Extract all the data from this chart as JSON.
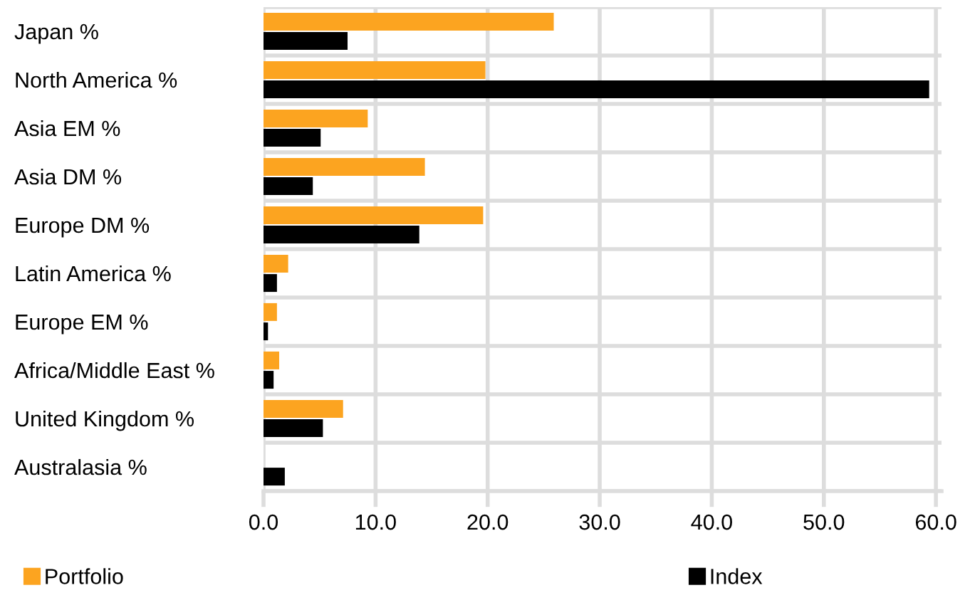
{
  "chart_data": {
    "type": "bar",
    "orientation": "horizontal",
    "categories": [
      "Japan %",
      "North America %",
      "Asia EM %",
      "Asia DM %",
      "Europe DM %",
      "Latin America %",
      "Europe EM %",
      "Africa/Middle East %",
      "United Kingdom %",
      "Australasia %"
    ],
    "series": [
      {
        "name": "Portfolio",
        "color": "#fca420",
        "values": [
          25.9,
          19.8,
          9.3,
          14.4,
          19.6,
          2.2,
          1.2,
          1.4,
          7.1,
          null
        ]
      },
      {
        "name": "Index",
        "color": "#000000",
        "values": [
          7.5,
          59.4,
          5.1,
          4.4,
          13.9,
          1.2,
          0.4,
          0.9,
          5.3,
          1.9
        ]
      }
    ],
    "xlim": [
      0,
      60.5
    ],
    "xticks": [
      {
        "value": 0,
        "label": "0.0"
      },
      {
        "value": 10,
        "label": "10.0"
      },
      {
        "value": 20,
        "label": "20.0"
      },
      {
        "value": 30,
        "label": "30.0"
      },
      {
        "value": 40,
        "label": "40.0"
      },
      {
        "value": 50,
        "label": "50.0"
      },
      {
        "value": 60,
        "label": "60.0"
      }
    ],
    "grid": true,
    "legend": "bottom"
  }
}
